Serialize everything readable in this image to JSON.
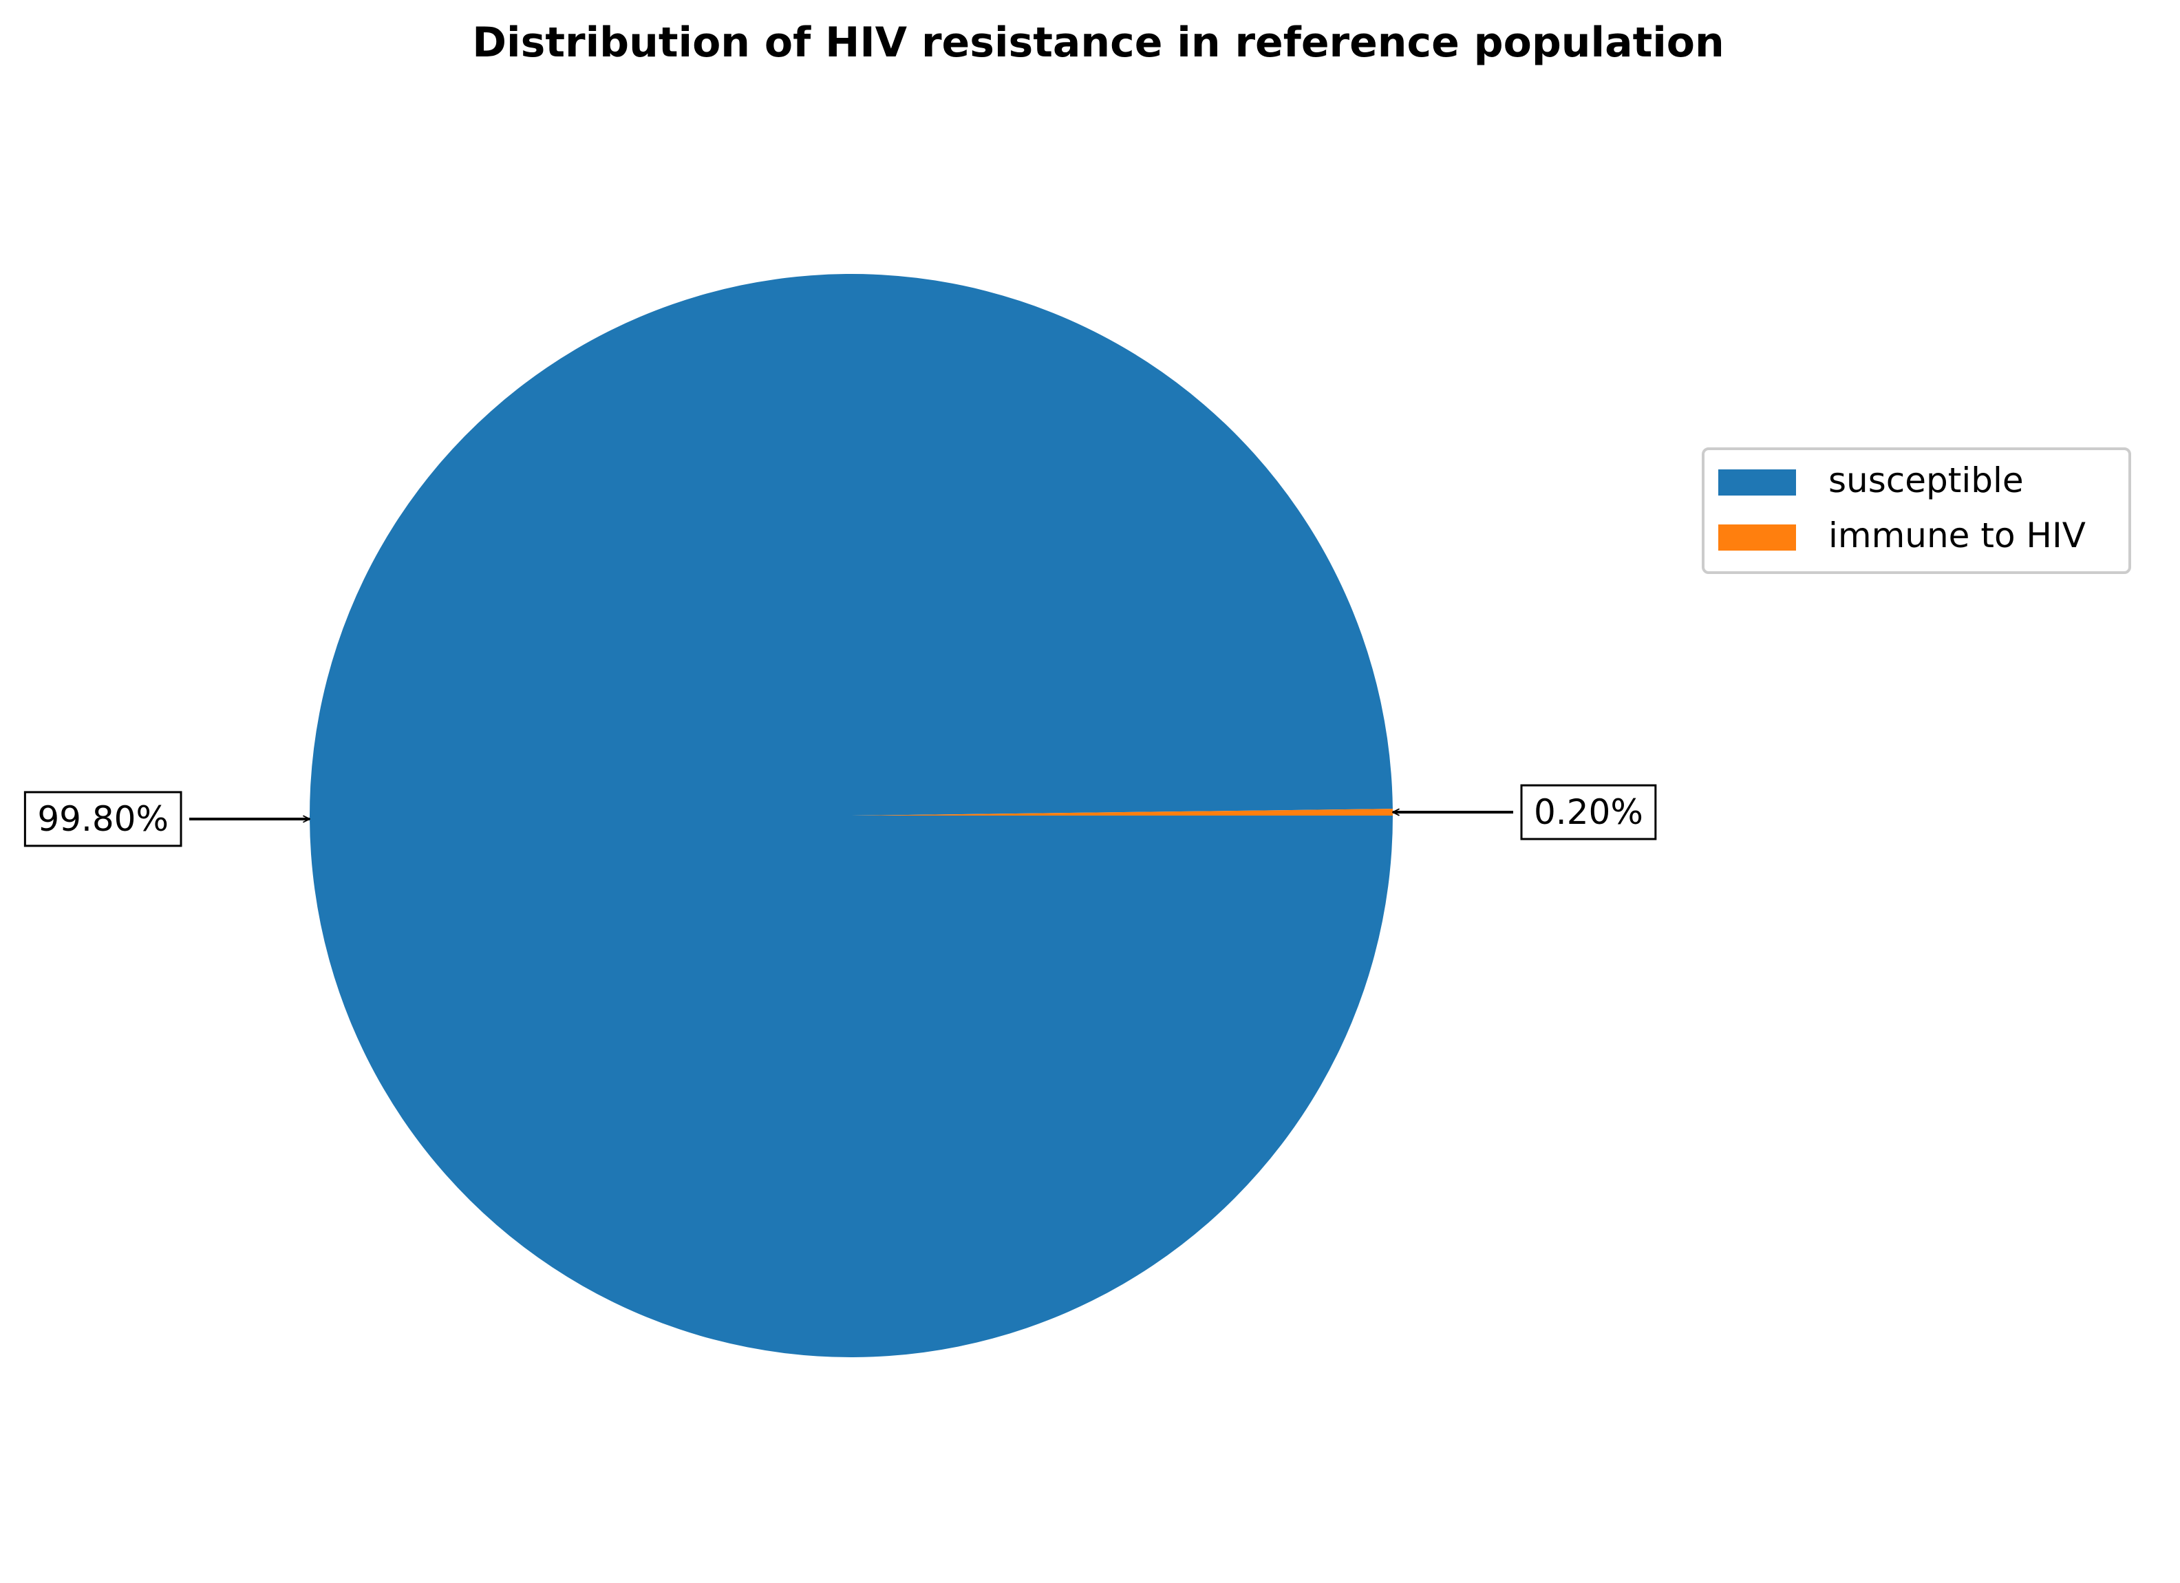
{
  "chart_data": {
    "type": "pie",
    "title": "Distribution of HIV resistance in reference population",
    "slices": [
      {
        "label": "susceptible",
        "value": 99.8,
        "display": "99.80%",
        "color": "#1f77b4"
      },
      {
        "label": "immune to HIV",
        "value": 0.2,
        "display": "0.20%",
        "color": "#ff7f0e"
      }
    ],
    "start_angle": "0° (3 o'clock), clockwise",
    "legend": {
      "placement": "right",
      "entries": [
        "susceptible",
        "immune to HIV"
      ]
    },
    "annotations": "percentage labels in boxes with arrows pointing at the pie edge"
  }
}
